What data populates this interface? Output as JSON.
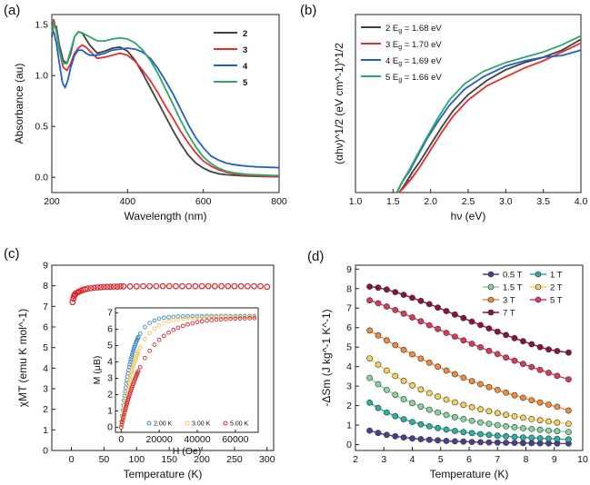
{
  "panels": {
    "a": {
      "label": "(a)"
    },
    "b": {
      "label": "(b)"
    },
    "c": {
      "label": "(c)"
    },
    "d": {
      "label": "(d)"
    }
  },
  "chart_data": [
    {
      "id": "a",
      "type": "line",
      "title": "",
      "xlabel": "Wavelength (nm)",
      "ylabel": "Absorbance (au)",
      "xlim": [
        200,
        800
      ],
      "ylim": [
        -0.15,
        1.6
      ],
      "xticks": [
        200,
        400,
        600,
        800
      ],
      "yticks": [
        0.0,
        0.5,
        1.0,
        1.5
      ],
      "yticklabels": [
        "0.0",
        "0.5",
        "1.0",
        "1.5"
      ],
      "legend_position": "top-right",
      "series": [
        {
          "name": "2",
          "color": "#404040",
          "x": [
            200,
            205,
            212,
            220,
            230,
            240,
            250,
            260,
            270,
            280,
            290,
            300,
            320,
            340,
            360,
            380,
            400,
            420,
            440,
            460,
            480,
            500,
            520,
            540,
            560,
            580,
            600,
            620,
            640,
            660,
            680,
            700,
            720,
            740,
            760,
            780,
            800
          ],
          "y": [
            1.38,
            1.5,
            1.48,
            1.3,
            1.15,
            1.12,
            1.22,
            1.38,
            1.43,
            1.42,
            1.36,
            1.3,
            1.22,
            1.24,
            1.27,
            1.28,
            1.24,
            1.15,
            1.02,
            0.88,
            0.74,
            0.6,
            0.46,
            0.33,
            0.22,
            0.14,
            0.09,
            0.055,
            0.035,
            0.025,
            0.02,
            0.015,
            0.012,
            0.01,
            0.008,
            0.006,
            0.005
          ]
        },
        {
          "name": "3",
          "color": "#e03030",
          "x": [
            200,
            205,
            212,
            220,
            230,
            240,
            250,
            260,
            270,
            280,
            290,
            300,
            320,
            340,
            360,
            380,
            400,
            420,
            440,
            460,
            480,
            500,
            520,
            540,
            560,
            580,
            600,
            620,
            640,
            660,
            680,
            700,
            720,
            740,
            760,
            780,
            800
          ],
          "y": [
            1.45,
            1.55,
            1.43,
            1.25,
            1.08,
            1.05,
            1.12,
            1.22,
            1.27,
            1.3,
            1.28,
            1.24,
            1.17,
            1.18,
            1.2,
            1.22,
            1.2,
            1.14,
            1.05,
            0.95,
            0.83,
            0.7,
            0.58,
            0.45,
            0.34,
            0.24,
            0.16,
            0.11,
            0.075,
            0.05,
            0.035,
            0.025,
            0.02,
            0.015,
            0.012,
            0.01,
            0.008
          ]
        },
        {
          "name": "4",
          "color": "#1f5fc8",
          "x": [
            200,
            205,
            212,
            220,
            228,
            235,
            242,
            250,
            260,
            270,
            280,
            290,
            300,
            320,
            340,
            360,
            380,
            400,
            420,
            440,
            460,
            480,
            500,
            520,
            540,
            560,
            580,
            600,
            620,
            640,
            660,
            680,
            700,
            720,
            740,
            760,
            780,
            800
          ],
          "y": [
            1.4,
            1.43,
            1.32,
            1.12,
            0.93,
            0.88,
            0.95,
            1.08,
            1.2,
            1.25,
            1.25,
            1.22,
            1.2,
            1.2,
            1.22,
            1.25,
            1.26,
            1.27,
            1.26,
            1.23,
            1.17,
            1.07,
            0.95,
            0.82,
            0.67,
            0.52,
            0.39,
            0.29,
            0.21,
            0.17,
            0.14,
            0.125,
            0.115,
            0.108,
            0.103,
            0.1,
            0.097,
            0.095
          ]
        },
        {
          "name": "5",
          "color": "#2ea66a",
          "x": [
            200,
            205,
            212,
            220,
            230,
            240,
            250,
            260,
            270,
            280,
            290,
            300,
            320,
            340,
            360,
            380,
            400,
            420,
            440,
            460,
            480,
            500,
            520,
            540,
            560,
            580,
            600,
            620,
            640,
            660,
            680,
            700,
            720,
            740,
            760,
            780,
            800
          ],
          "y": [
            1.42,
            1.52,
            1.45,
            1.25,
            1.12,
            1.12,
            1.25,
            1.38,
            1.43,
            1.42,
            1.4,
            1.38,
            1.34,
            1.34,
            1.36,
            1.37,
            1.36,
            1.32,
            1.25,
            1.15,
            1.02,
            0.87,
            0.72,
            0.56,
            0.42,
            0.3,
            0.2,
            0.135,
            0.09,
            0.06,
            0.045,
            0.035,
            0.028,
            0.024,
            0.021,
            0.019,
            0.017
          ]
        }
      ]
    },
    {
      "id": "b",
      "type": "line",
      "title": "",
      "xlabel": "hν (eV)",
      "ylabel": "(αhν)^1/2 (eV cm^-1)^1/2",
      "xlim": [
        1.0,
        4.0
      ],
      "ylim": [
        0,
        100
      ],
      "xticks": [
        1.0,
        1.5,
        2.0,
        2.5,
        3.0,
        3.5,
        4.0
      ],
      "xticklabels": [
        "1.0",
        "1.5",
        "2.0",
        "2.5",
        "3.0",
        "3.5",
        "4.0"
      ],
      "legend_position": "top-left",
      "legend_suffix": "eV",
      "series": [
        {
          "name": "2",
          "label_prefix": "2 E",
          "label_sub": "g",
          "label_value": " = 1.68 eV",
          "color": "#404040",
          "x": [
            1.58,
            1.65,
            1.75,
            1.85,
            2.0,
            2.15,
            2.3,
            2.5,
            2.75,
            3.0,
            3.25,
            3.5,
            3.75,
            4.0
          ],
          "y": [
            0,
            4,
            11,
            17,
            27,
            37,
            46,
            55,
            63,
            69,
            73,
            76,
            80,
            86
          ]
        },
        {
          "name": "3",
          "label_prefix": "3 E",
          "label_sub": "g",
          "label_value": " = 1.70 eV",
          "color": "#e03030",
          "x": [
            1.58,
            1.65,
            1.75,
            1.85,
            2.0,
            2.15,
            2.3,
            2.5,
            2.75,
            3.0,
            3.25,
            3.5,
            3.75,
            4.0
          ],
          "y": [
            0,
            3,
            8,
            14,
            24,
            34,
            43,
            52,
            60,
            65,
            70,
            74,
            79,
            84
          ]
        },
        {
          "name": "4",
          "label_prefix": "4 E",
          "label_sub": "g",
          "label_value": " = 1.69 eV",
          "color": "#1f5fc8",
          "x": [
            1.55,
            1.62,
            1.72,
            1.82,
            1.95,
            2.1,
            2.25,
            2.45,
            2.7,
            3.0,
            3.25,
            3.5,
            3.75,
            4.0
          ],
          "y": [
            0,
            6,
            12,
            20,
            30,
            40,
            49,
            58,
            65,
            71,
            74,
            76,
            77,
            80
          ]
        },
        {
          "name": "5",
          "label_prefix": "5 E",
          "label_sub": "g",
          "label_value": " = 1.66 eV",
          "color": "#2ea66a",
          "x": [
            1.55,
            1.62,
            1.72,
            1.82,
            1.95,
            2.1,
            2.25,
            2.45,
            2.7,
            3.0,
            3.25,
            3.5,
            3.75,
            4.0
          ],
          "y": [
            0,
            6,
            13,
            21,
            31,
            42,
            52,
            61,
            68,
            73,
            76,
            79,
            83,
            88
          ]
        }
      ]
    },
    {
      "id": "c",
      "type": "scatter",
      "title": "",
      "xlabel": "Temperature (K)",
      "ylabel": "χMT (emu K mol^-1)",
      "xlim": [
        -30,
        310
      ],
      "ylim": [
        0,
        9
      ],
      "xticks": [
        0,
        50,
        100,
        150,
        200,
        250,
        300
      ],
      "yticks": [
        0,
        1,
        2,
        3,
        4,
        5,
        6,
        7,
        8,
        9
      ],
      "color": "#d9262b",
      "x": [
        1.8,
        3,
        4,
        5,
        6,
        8,
        10,
        12,
        15,
        18,
        21,
        25,
        30,
        35,
        40,
        45,
        50,
        55,
        60,
        65,
        70,
        75,
        80,
        90,
        100,
        110,
        120,
        130,
        140,
        150,
        160,
        170,
        180,
        190,
        200,
        210,
        220,
        230,
        240,
        250,
        260,
        270,
        280,
        290,
        300
      ],
      "y": [
        7.2,
        7.38,
        7.5,
        7.56,
        7.6,
        7.65,
        7.69,
        7.72,
        7.76,
        7.8,
        7.83,
        7.86,
        7.88,
        7.9,
        7.92,
        7.93,
        7.94,
        7.95,
        7.95,
        7.96,
        7.96,
        7.97,
        7.97,
        7.97,
        7.97,
        7.98,
        7.98,
        7.98,
        7.98,
        7.98,
        7.98,
        7.98,
        7.98,
        7.98,
        7.98,
        7.98,
        7.98,
        7.98,
        7.98,
        7.98,
        7.98,
        7.98,
        7.98,
        7.98,
        7.95
      ],
      "inset": {
        "type": "scatter",
        "xlabel": "H (Oe)",
        "ylabel": "M (μB)",
        "xlim": [
          -3000,
          72000
        ],
        "ylim": [
          -0.3,
          7.3
        ],
        "xticks": [
          0,
          20000,
          40000,
          60000
        ],
        "yticks": [
          0,
          1,
          2,
          3,
          4,
          5,
          6,
          7
        ],
        "legend_position": "bottom-right",
        "series": [
          {
            "name": "2.00 K",
            "color": "#3a86c8",
            "Msat": 6.8,
            "scale": 5400
          },
          {
            "name": "3.00 K",
            "color": "#f2c35a",
            "Msat": 6.75,
            "scale": 7800
          },
          {
            "name": "5.00 K",
            "color": "#d9262b",
            "Msat": 6.7,
            "scale": 12500
          }
        ]
      }
    },
    {
      "id": "d",
      "type": "line",
      "title": "",
      "xlabel": "Temperature (K)",
      "ylabel": "-ΔSm (J kg^-1 K^-1)",
      "xlim": [
        2,
        10
      ],
      "ylim": [
        -0.3,
        9.2
      ],
      "xticks": [
        2,
        3,
        4,
        5,
        6,
        7,
        8,
        9,
        10
      ],
      "yticks": [
        0,
        1,
        2,
        3,
        4,
        5,
        6,
        7,
        8,
        9
      ],
      "legend_position": "top-right",
      "x": [
        2.5,
        2.8,
        3.1,
        3.4,
        3.7,
        4.0,
        4.3,
        4.6,
        4.9,
        5.2,
        5.5,
        5.8,
        6.1,
        6.4,
        6.7,
        7.0,
        7.3,
        7.6,
        7.9,
        8.2,
        8.5,
        8.8,
        9.1,
        9.5
      ],
      "series": [
        {
          "name": "0.5 T",
          "color": "#4a3f8f",
          "values": [
            0.72,
            0.6,
            0.5,
            0.43,
            0.37,
            0.32,
            0.28,
            0.25,
            0.22,
            0.19,
            0.17,
            0.155,
            0.14,
            0.125,
            0.115,
            0.105,
            0.095,
            0.09,
            0.08,
            0.075,
            0.07,
            0.065,
            0.06,
            0.055
          ]
        },
        {
          "name": "1 T",
          "color": "#2bb0a4",
          "values": [
            2.15,
            1.88,
            1.65,
            1.46,
            1.3,
            1.16,
            1.04,
            0.94,
            0.85,
            0.77,
            0.7,
            0.64,
            0.59,
            0.54,
            0.5,
            0.46,
            0.43,
            0.4,
            0.37,
            0.35,
            0.33,
            0.31,
            0.29,
            0.27
          ]
        },
        {
          "name": "1.5 T",
          "color": "#86d39e",
          "values": [
            3.42,
            3.1,
            2.8,
            2.55,
            2.33,
            2.13,
            1.95,
            1.79,
            1.65,
            1.52,
            1.41,
            1.31,
            1.22,
            1.14,
            1.07,
            1.0,
            0.94,
            0.89,
            0.84,
            0.8,
            0.76,
            0.72,
            0.69,
            0.65
          ]
        },
        {
          "name": "2 T",
          "color": "#f7cf5e",
          "values": [
            4.42,
            4.1,
            3.8,
            3.52,
            3.27,
            3.04,
            2.83,
            2.64,
            2.47,
            2.31,
            2.17,
            2.04,
            1.92,
            1.81,
            1.71,
            1.62,
            1.53,
            1.45,
            1.38,
            1.31,
            1.25,
            1.19,
            1.13,
            1.07
          ]
        },
        {
          "name": "3 T",
          "color": "#f38a3a",
          "values": [
            5.85,
            5.6,
            5.35,
            5.1,
            4.86,
            4.63,
            4.41,
            4.2,
            4.0,
            3.8,
            3.61,
            3.43,
            3.26,
            3.1,
            2.95,
            2.8,
            2.66,
            2.53,
            2.4,
            2.28,
            2.16,
            2.05,
            1.94,
            1.75
          ]
        },
        {
          "name": "5 T",
          "color": "#d93a59",
          "values": [
            7.4,
            7.25,
            7.08,
            6.9,
            6.72,
            6.52,
            6.32,
            6.12,
            5.93,
            5.73,
            5.54,
            5.35,
            5.17,
            4.99,
            4.81,
            4.64,
            4.47,
            4.3,
            4.14,
            3.98,
            3.83,
            3.68,
            3.53,
            3.35
          ]
        },
        {
          "name": "7 T",
          "color": "#8b1238",
          "values": [
            8.1,
            8.05,
            7.95,
            7.82,
            7.68,
            7.53,
            7.37,
            7.2,
            7.03,
            6.85,
            6.67,
            6.49,
            6.31,
            6.13,
            5.96,
            5.79,
            5.62,
            5.46,
            5.3,
            5.15,
            5.0,
            4.88,
            4.8,
            4.72
          ]
        }
      ]
    }
  ]
}
